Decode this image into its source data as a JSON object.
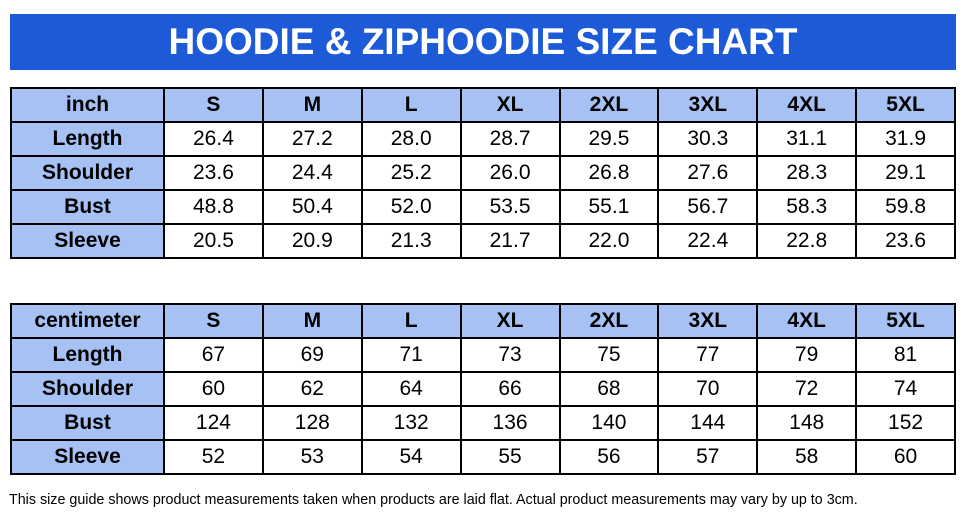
{
  "header": {
    "title": "HOODIE & ZIPHOODIE SIZE CHART"
  },
  "tables": [
    {
      "columns": [
        "inch",
        "S",
        "M",
        "L",
        "XL",
        "2XL",
        "3XL",
        "4XL",
        "5XL"
      ],
      "rows": [
        [
          "Length",
          "26.4",
          "27.2",
          "28.0",
          "28.7",
          "29.5",
          "30.3",
          "31.1",
          "31.9"
        ],
        [
          "Shoulder",
          "23.6",
          "24.4",
          "25.2",
          "26.0",
          "26.8",
          "27.6",
          "28.3",
          "29.1"
        ],
        [
          "Bust",
          "48.8",
          "50.4",
          "52.0",
          "53.5",
          "55.1",
          "56.7",
          "58.3",
          "59.8"
        ],
        [
          "Sleeve",
          "20.5",
          "20.9",
          "21.3",
          "21.7",
          "22.0",
          "22.4",
          "22.8",
          "23.6"
        ]
      ]
    },
    {
      "columns": [
        "centimeter",
        "S",
        "M",
        "L",
        "XL",
        "2XL",
        "3XL",
        "4XL",
        "5XL"
      ],
      "rows": [
        [
          "Length",
          "67",
          "69",
          "71",
          "73",
          "75",
          "77",
          "79",
          "81"
        ],
        [
          "Shoulder",
          "60",
          "62",
          "64",
          "66",
          "68",
          "70",
          "72",
          "74"
        ],
        [
          "Bust",
          "124",
          "128",
          "132",
          "136",
          "140",
          "144",
          "148",
          "152"
        ],
        [
          "Sleeve",
          "52",
          "53",
          "54",
          "55",
          "56",
          "57",
          "58",
          "60"
        ]
      ]
    }
  ],
  "footnote": "This size guide shows product measurements taken when products are laid flat. Actual product measurements may vary by up to 3cm."
}
